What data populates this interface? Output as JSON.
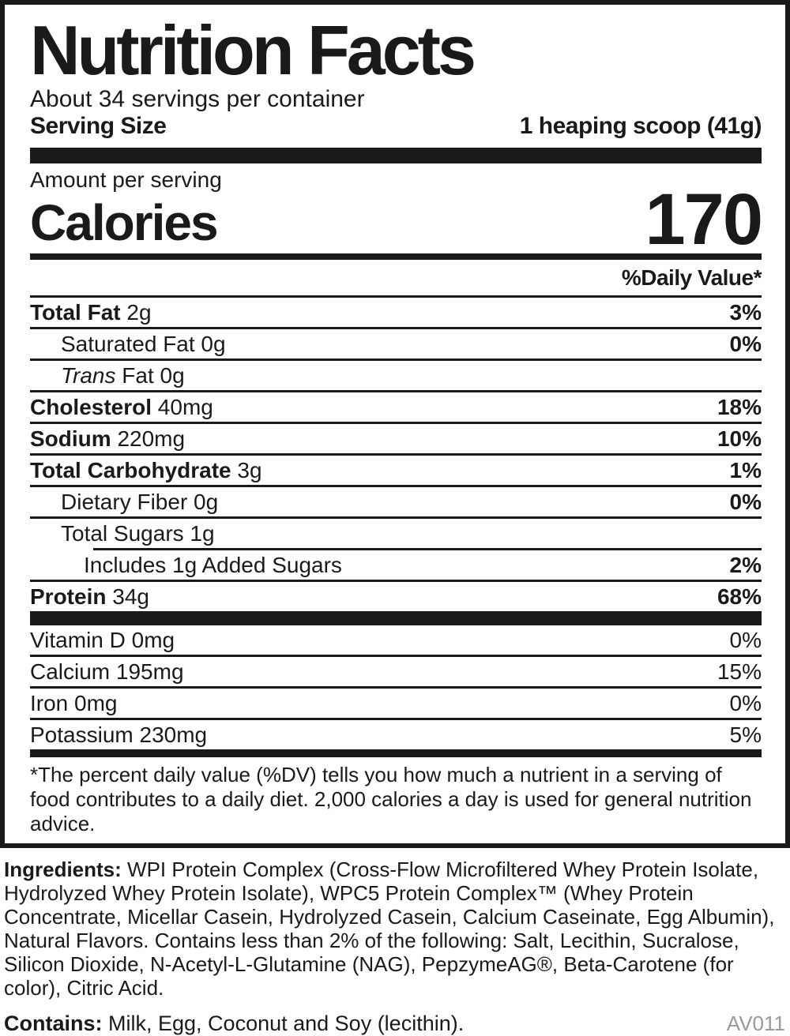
{
  "label": {
    "title": "Nutrition Facts",
    "servings_per_container": "About 34 servings per container",
    "serving_size_label": "Serving Size",
    "serving_size_value": "1 heaping scoop (41g)",
    "amount_per_serving": "Amount per serving",
    "calories_label": "Calories",
    "calories_value": "170",
    "daily_value_header": "%Daily Value*",
    "nutrients": [
      {
        "indent": 0,
        "parts": [
          {
            "t": "Total Fat",
            "s": "bold"
          },
          {
            "t": " 2g",
            "s": "regular"
          }
        ],
        "dv": "3%",
        "dv_bold": true
      },
      {
        "indent": 1,
        "parts": [
          {
            "t": "Saturated Fat 0g",
            "s": "regular"
          }
        ],
        "dv": "0%",
        "dv_bold": true
      },
      {
        "indent": 1,
        "parts": [
          {
            "t": "Trans",
            "s": "italic"
          },
          {
            "t": " Fat 0g",
            "s": "regular"
          }
        ],
        "dv": "",
        "dv_bold": false
      },
      {
        "indent": 0,
        "parts": [
          {
            "t": "Cholesterol",
            "s": "bold"
          },
          {
            "t": " 40mg",
            "s": "regular"
          }
        ],
        "dv": "18%",
        "dv_bold": true
      },
      {
        "indent": 0,
        "parts": [
          {
            "t": "Sodium",
            "s": "bold"
          },
          {
            "t": " 220mg",
            "s": "regular"
          }
        ],
        "dv": "10%",
        "dv_bold": true
      },
      {
        "indent": 0,
        "parts": [
          {
            "t": "Total Carbohydrate",
            "s": "bold"
          },
          {
            "t": " 3g",
            "s": "regular"
          }
        ],
        "dv": "1%",
        "dv_bold": true
      },
      {
        "indent": 1,
        "parts": [
          {
            "t": "Dietary Fiber 0g",
            "s": "regular"
          }
        ],
        "dv": "0%",
        "dv_bold": true
      },
      {
        "indent": 1,
        "parts": [
          {
            "t": "Total Sugars 1g",
            "s": "regular"
          }
        ],
        "dv": "",
        "dv_bold": false,
        "rule_below": "indented"
      },
      {
        "indent": 2,
        "parts": [
          {
            "t": "Includes 1g Added Sugars",
            "s": "regular"
          }
        ],
        "dv": "2%",
        "dv_bold": true
      },
      {
        "indent": 0,
        "parts": [
          {
            "t": "Protein",
            "s": "bold"
          },
          {
            "t": " 34g",
            "s": "regular"
          }
        ],
        "dv": "68%",
        "dv_bold": true
      }
    ],
    "vitamins": [
      {
        "label": "Vitamin D 0mg",
        "dv": "0%"
      },
      {
        "label": "Calcium 195mg",
        "dv": "15%"
      },
      {
        "label": "Iron 0mg",
        "dv": "0%"
      },
      {
        "label": "Potassium 230mg",
        "dv": "5%"
      }
    ],
    "footnote": "*The percent daily value (%DV) tells you how much a nutrient in a serving of food contributes to a daily diet. 2,000 calories a day is used for general nutrition advice."
  },
  "ingredients": {
    "label": "Ingredients:",
    "text": "WPI Protein Complex (Cross-Flow Microfiltered Whey Protein Isolate, Hydrolyzed Whey Protein Isolate), WPC5 Protein Complex™ (Whey Protein Concentrate, Micellar Casein, Hydrolyzed Casein, Calcium Caseinate, Egg Albumin), Natural Flavors. Contains less than 2% of the following: Salt, Lecithin,  Sucralose, Silicon Dioxide, N-Acetyl-L-Glutamine (NAG), PepzymeAG®, Beta-Carotene (for color), Citric Acid."
  },
  "contains": {
    "label": "Contains:",
    "text": "Milk, Egg, Coconut and Soy (lecithin)."
  },
  "code": "AV011",
  "colors": {
    "ink": "#1a1a1a",
    "muted": "#9a9a9a",
    "background": "#ffffff"
  }
}
